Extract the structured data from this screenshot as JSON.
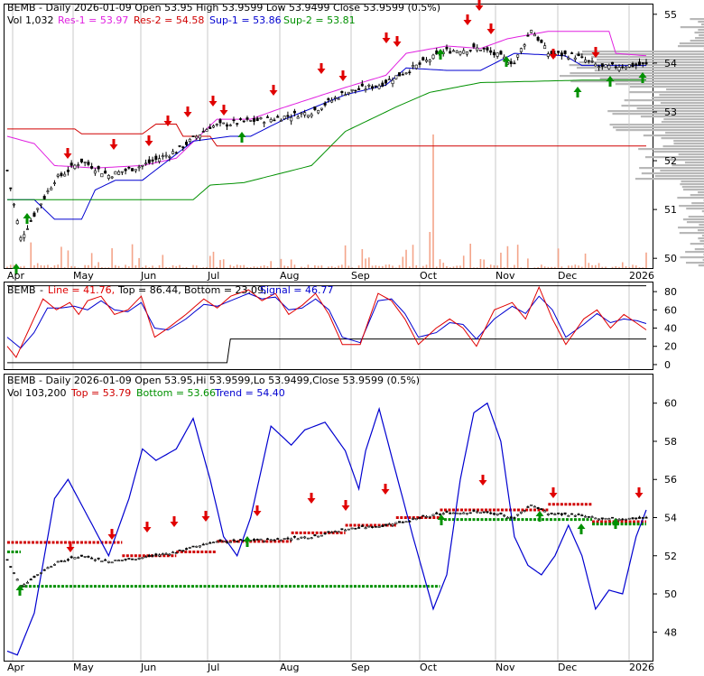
{
  "chart_data": [
    {
      "type": "candlestick",
      "panel": "price",
      "header": {
        "symbol": "BEMB",
        "title": "BEMB - Daily 2026-01-09 Open 53.95  High 53.9599  Low 53.9499  Close 53.9599 (0.5%)",
        "vol": "Vol 1,032",
        "res1": "Res-1 = 53.97",
        "res2": "Res-2 = 54.58",
        "sup1": "Sup-1 = 53.86",
        "sup2": "Sup-2 = 53.81"
      },
      "months": [
        "Apr",
        "May",
        "Jun",
        "Jul",
        "Aug",
        "Sep",
        "Oct",
        "Nov",
        "Dec",
        "2026"
      ],
      "y_ticks": [
        55,
        54,
        53,
        52,
        51,
        50
      ],
      "ylim": [
        49.8,
        55.2
      ],
      "colors": {
        "res1": "#e020e0",
        "res2": "#d00000",
        "sup1": "#0000d0",
        "sup2": "#009000",
        "volume": "#f4a58a",
        "profile": "#b8b8b8",
        "up_arrow": "#009000",
        "down_arrow": "#e00000"
      }
    },
    {
      "type": "line",
      "panel": "oscillator",
      "header": {
        "symbol": "BEMB",
        "line": "Line = 41.76,",
        "top": "Top = 86.44,",
        "bottom": "Bottom = 23.09,",
        "signal": "Signal = 46.77"
      },
      "y_ticks": [
        80,
        60,
        40,
        20,
        0
      ],
      "ylim": [
        -5,
        90
      ],
      "top": 86.44,
      "bottom": 23.09,
      "last_line": 41.76,
      "last_signal": 46.77,
      "colors": {
        "line": "#e00000",
        "signal": "#0000d0",
        "levels": "#000000"
      }
    },
    {
      "type": "line",
      "panel": "trend",
      "header": {
        "title": "BEMB - Daily 2026-01-09 Open 53.95,Hi 53.9599,Lo 53.9499,Close 53.9599 (0.5%)",
        "vol": "Vol 103,200",
        "top": "Top = 53.79",
        "bottom": "Bottom = 53.66",
        "trend": "Trend = 54.40"
      },
      "y_ticks": [
        60,
        58,
        56,
        54,
        52,
        50,
        48
      ],
      "ylim": [
        46.5,
        61.5
      ],
      "months": [
        "Apr",
        "May",
        "Jun",
        "Jul",
        "Aug",
        "Sep",
        "Oct",
        "Nov",
        "Dec",
        "2026"
      ],
      "colors": {
        "trend": "#0000d0",
        "top": "#d00000",
        "bottom": "#009000"
      }
    }
  ]
}
